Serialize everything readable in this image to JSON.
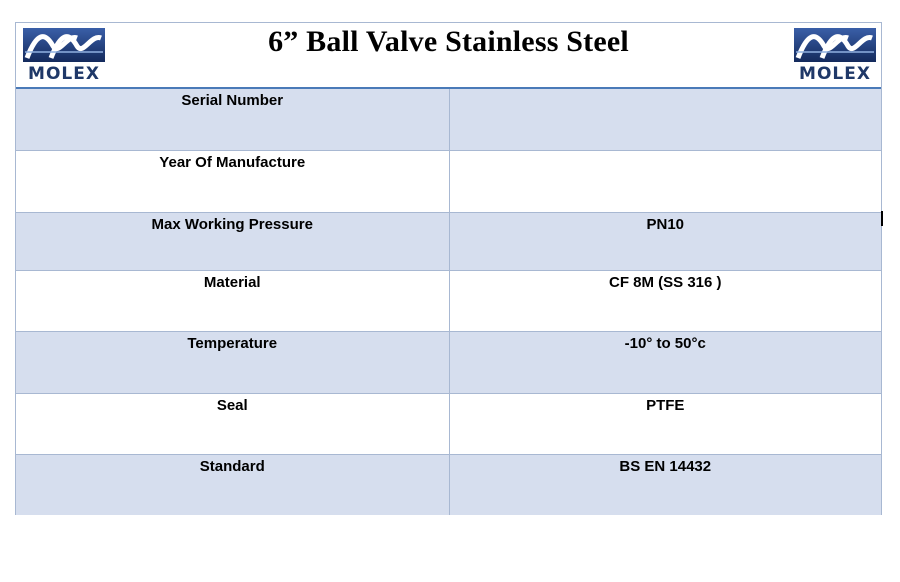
{
  "header": {
    "title": "6” Ball Valve Stainless Steel",
    "logo_text": "MOLEX",
    "logo_icon": "molex-wave-logo"
  },
  "colors": {
    "band_fill": "#d6deee",
    "grid_line": "#a8b8d2",
    "header_rule": "#4a7ab8",
    "logo_blue": "#1f3868"
  },
  "specs": {
    "rows": [
      {
        "label": "Serial Number",
        "value": ""
      },
      {
        "label": "Year Of Manufacture",
        "value": ""
      },
      {
        "label": "Max Working Pressure",
        "value": "PN10"
      },
      {
        "label": "Material",
        "value": "CF 8M (SS 316 )"
      },
      {
        "label": "Temperature",
        "value": "-10° to 50°c"
      },
      {
        "label": "Seal",
        "value": "PTFE"
      },
      {
        "label": "Standard",
        "value": "BS EN 14432"
      }
    ]
  }
}
